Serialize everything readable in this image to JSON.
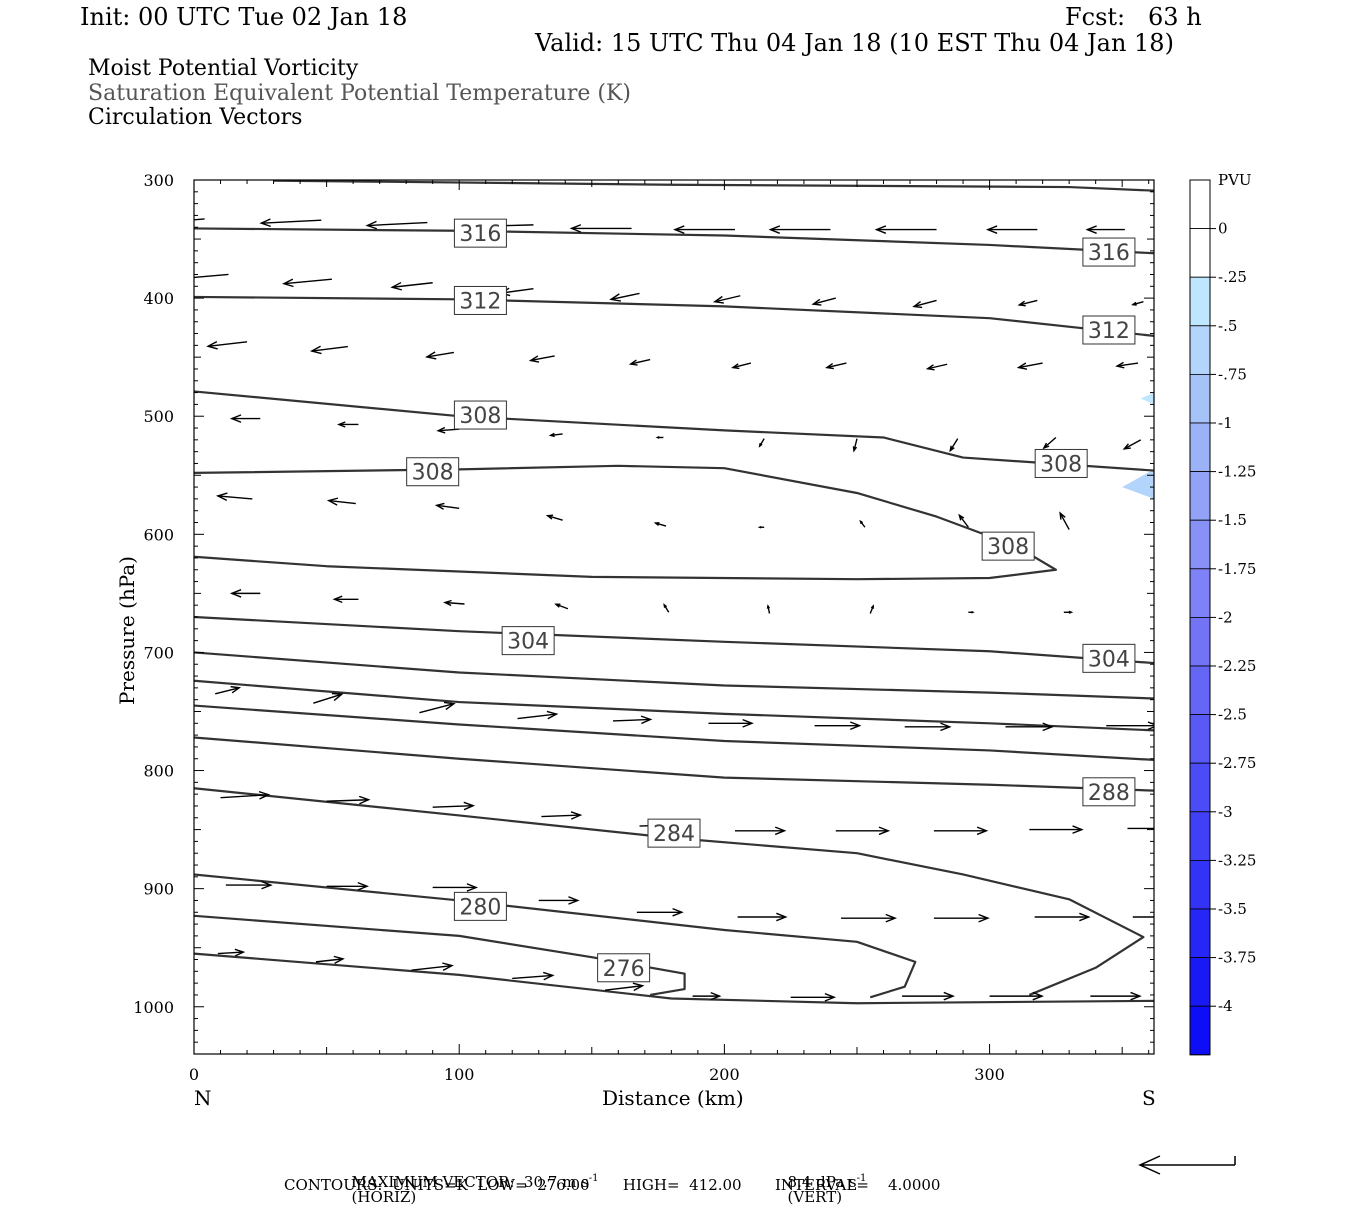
{
  "header": {
    "init": "Init: 00 UTC Tue 02 Jan 18",
    "fcst": "Fcst:   63 h",
    "valid": "Valid: 15 UTC Thu 04 Jan 18 (10 EST Thu 04 Jan 18)"
  },
  "fields": [
    "Moist Potential Vorticity",
    "Saturation Equivalent Potential Temperature (K)",
    "Circulation Vectors"
  ],
  "footer": {
    "line1a": "MAXIMUM VECTOR:  30.7 m s",
    "line1b": "(HORIZ)",
    "line1c": "8.4 dPa s",
    "line1d": "(VERT)",
    "sup": "-1",
    "line2": "CONTOURS:  UNITS=K  LOW=  276.00       HIGH=  412.00       INTERVAL=    4.0000"
  },
  "chart_data": {
    "type": "line",
    "xlabel": "Distance (km)",
    "ylabel": "Pressure (hPa)",
    "xlim": [
      0,
      362
    ],
    "ylim": [
      300,
      1040
    ],
    "x_ticks": [
      0,
      100,
      200,
      300
    ],
    "y_ticks": [
      300,
      400,
      500,
      600,
      700,
      800,
      900,
      1000
    ],
    "x_end_labels": {
      "left": "N",
      "right": "S"
    },
    "colorbar": {
      "title": "PVU",
      "labels": [
        "0",
        "-.25",
        "-.5",
        "-.75",
        "-1",
        "-1.25",
        "-1.5",
        "-1.75",
        "-2",
        "-2.25",
        "-2.5",
        "-2.75",
        "-3",
        "-3.25",
        "-3.5",
        "-3.75",
        "-4"
      ],
      "colors": [
        "#ffffff",
        "#ffffff",
        "#bfe6ff",
        "#b3d5fb",
        "#a6c3f7",
        "#9cb2f6",
        "#92a2f6",
        "#8892f6",
        "#7e82f6",
        "#7373f6",
        "#6666f6",
        "#5959f6",
        "#4c4cf6",
        "#4040f6",
        "#3333f6",
        "#2626f6",
        "#1919f6",
        "#0d0df6"
      ]
    },
    "series": [
      {
        "points": [
          [
            30,
            300.5
          ],
          [
            180,
            304
          ],
          [
            330,
            306
          ],
          [
            362,
            309
          ]
        ]
      },
      {
        "points": [
          [
            0,
            341
          ],
          [
            100,
            343
          ],
          [
            200,
            347
          ],
          [
            300,
            355
          ],
          [
            362,
            362
          ]
        ],
        "labels": [
          {
            "text": "316",
            "x": 108,
            "y": 345
          },
          {
            "text": "316",
            "x": 345,
            "y": 361
          }
        ]
      },
      {
        "points": [
          [
            0,
            399
          ],
          [
            100,
            401
          ],
          [
            200,
            407
          ],
          [
            300,
            417
          ],
          [
            362,
            432
          ]
        ],
        "labels": [
          {
            "text": "312",
            "x": 108,
            "y": 402
          },
          {
            "text": "312",
            "x": 345,
            "y": 427
          }
        ]
      },
      {
        "points": [
          [
            0,
            479
          ],
          [
            100,
            500
          ],
          [
            200,
            512
          ],
          [
            260,
            518
          ],
          [
            290,
            535
          ],
          [
            362,
            546
          ]
        ],
        "labels": [
          {
            "text": "308",
            "x": 108,
            "y": 499
          },
          {
            "text": "308",
            "x": 327,
            "y": 540
          }
        ]
      },
      {
        "points": [
          [
            0,
            548
          ],
          [
            100,
            545
          ],
          [
            160,
            542
          ],
          [
            200,
            544
          ],
          [
            250,
            565
          ],
          [
            280,
            585
          ],
          [
            310,
            610
          ],
          [
            325,
            630
          ],
          [
            300,
            637
          ],
          [
            250,
            638
          ],
          [
            150,
            636
          ],
          [
            50,
            627
          ],
          [
            0,
            619
          ]
        ],
        "labels": [
          {
            "text": "308",
            "x": 90,
            "y": 547
          },
          {
            "text": "308",
            "x": 307,
            "y": 610
          }
        ]
      },
      {
        "points": [
          [
            0,
            670
          ],
          [
            100,
            682
          ],
          [
            200,
            691
          ],
          [
            300,
            699
          ],
          [
            362,
            709
          ]
        ],
        "labels": [
          {
            "text": "304",
            "x": 126,
            "y": 690
          },
          {
            "text": "304",
            "x": 345,
            "y": 705
          }
        ]
      },
      {
        "points": [
          [
            0,
            700
          ],
          [
            100,
            717
          ],
          [
            200,
            728
          ],
          [
            300,
            734
          ],
          [
            362,
            739
          ]
        ]
      },
      {
        "points": [
          [
            0,
            724
          ],
          [
            100,
            742
          ],
          [
            200,
            752
          ],
          [
            300,
            760
          ],
          [
            362,
            766
          ]
        ]
      },
      {
        "points": [
          [
            0,
            745
          ],
          [
            100,
            761
          ],
          [
            200,
            775
          ],
          [
            300,
            783
          ],
          [
            362,
            791
          ]
        ]
      },
      {
        "points": [
          [
            0,
            772
          ],
          [
            100,
            790
          ],
          [
            200,
            806
          ],
          [
            300,
            812
          ],
          [
            362,
            817
          ]
        ],
        "labels": [
          {
            "text": "288",
            "x": 345,
            "y": 818
          }
        ]
      },
      {
        "points": [
          [
            0,
            815
          ],
          [
            100,
            838
          ],
          [
            180,
            857
          ],
          [
            250,
            870
          ],
          [
            290,
            888
          ],
          [
            330,
            909
          ],
          [
            358,
            941
          ],
          [
            340,
            967
          ],
          [
            315,
            990
          ]
        ],
        "labels": [
          {
            "text": "284",
            "x": 181,
            "y": 853
          }
        ]
      },
      {
        "points": [
          [
            0,
            888
          ],
          [
            100,
            910
          ],
          [
            200,
            935
          ],
          [
            250,
            945
          ],
          [
            272,
            962
          ],
          [
            268,
            983
          ],
          [
            255,
            992
          ]
        ],
        "labels": [
          {
            "text": "280",
            "x": 108,
            "y": 915
          }
        ]
      },
      {
        "points": [
          [
            0,
            923
          ],
          [
            100,
            940
          ],
          [
            150,
            958
          ],
          [
            185,
            972
          ],
          [
            185,
            985
          ],
          [
            172,
            990
          ]
        ],
        "labels": [
          {
            "text": "276",
            "x": 162,
            "y": 967
          }
        ]
      },
      {
        "points": [
          [
            0,
            955
          ],
          [
            100,
            973
          ],
          [
            180,
            993
          ],
          [
            250,
            997
          ],
          [
            362,
            995
          ]
        ]
      }
    ],
    "pv_shading": [
      {
        "value": "-.5",
        "points": [
          [
            362,
            545
          ],
          [
            350,
            560
          ],
          [
            362,
            570
          ]
        ]
      },
      {
        "value": "-.25",
        "points": [
          [
            362,
            480
          ],
          [
            357,
            485
          ],
          [
            362,
            490
          ]
        ]
      }
    ],
    "vectors": [
      [
        4,
        333,
        4,
        -0.3
      ],
      [
        48,
        334,
        4,
        -0.2
      ],
      [
        88,
        336,
        4,
        -0.2
      ],
      [
        128,
        338,
        4,
        -0.1
      ],
      [
        165,
        341,
        4,
        0
      ],
      [
        204,
        342,
        4,
        0
      ],
      [
        240,
        342,
        4,
        0
      ],
      [
        280,
        342,
        4,
        0
      ],
      [
        318,
        342,
        3.3,
        0
      ],
      [
        351,
        342,
        2.5,
        0
      ],
      [
        13,
        380,
        3.5,
        -0.3
      ],
      [
        52,
        384,
        3.2,
        -0.3
      ],
      [
        90,
        387,
        2.7,
        -0.3
      ],
      [
        128,
        392,
        2.2,
        -0.3
      ],
      [
        168,
        396,
        1.9,
        -0.4
      ],
      [
        206,
        398,
        1.7,
        -0.4
      ],
      [
        242,
        400,
        1.5,
        -0.4
      ],
      [
        280,
        402,
        1.5,
        -0.4
      ],
      [
        318,
        402,
        1.2,
        -0.3
      ],
      [
        358,
        403,
        0.7,
        -0.2
      ],
      [
        20,
        437,
        2.6,
        -0.3
      ],
      [
        58,
        441,
        2.4,
        -0.3
      ],
      [
        98,
        446,
        1.8,
        -0.3
      ],
      [
        136,
        449,
        1.6,
        -0.3
      ],
      [
        172,
        452,
        1.3,
        -0.3
      ],
      [
        210,
        455,
        1.2,
        -0.3
      ],
      [
        246,
        455,
        1.3,
        -0.3
      ],
      [
        284,
        456,
        1.3,
        -0.3
      ],
      [
        320,
        455,
        1.6,
        -0.3
      ],
      [
        356,
        455,
        1.4,
        -0.2
      ],
      [
        25,
        502,
        1.9,
        0
      ],
      [
        62,
        507,
        1.3,
        0
      ],
      [
        100,
        511,
        1.4,
        -0.1
      ],
      [
        139,
        515,
        0.8,
        -0.1
      ],
      [
        177,
        518,
        0.4,
        0
      ],
      [
        215,
        519,
        0.3,
        -0.5
      ],
      [
        250,
        519,
        0.2,
        -0.8
      ],
      [
        288,
        519,
        0.5,
        -0.8
      ],
      [
        325,
        518,
        0.8,
        -0.7
      ],
      [
        357,
        520,
        1.1,
        -0.6
      ],
      [
        22,
        570,
        2.3,
        0.2
      ],
      [
        61,
        574,
        1.8,
        0.2
      ],
      [
        100,
        578,
        1.5,
        0.2
      ],
      [
        139,
        588,
        1.0,
        0.3
      ],
      [
        178,
        593,
        0.7,
        0.2
      ],
      [
        215,
        594,
        0.3,
        0
      ],
      [
        253,
        594,
        0.3,
        0.4
      ],
      [
        292,
        594,
        0.6,
        0.8
      ],
      [
        330,
        596,
        0.6,
        1.1
      ],
      [
        25,
        650,
        1.9,
        0
      ],
      [
        62,
        655,
        1.6,
        0
      ],
      [
        102,
        659,
        1.3,
        0.1
      ],
      [
        141,
        663,
        0.8,
        0.3
      ],
      [
        179,
        666,
        0.3,
        0.5
      ],
      [
        217,
        667,
        0.1,
        0.5
      ],
      [
        255,
        667,
        -0.2,
        0.5
      ],
      [
        292,
        666,
        -0.3,
        0
      ],
      [
        328,
        666,
        -0.5,
        0
      ],
      [
        8,
        735,
        -1.6,
        0.4
      ],
      [
        45,
        743,
        -1.9,
        0.6
      ],
      [
        85,
        751,
        -2.3,
        0.6
      ],
      [
        122,
        756,
        -2.6,
        0.3
      ],
      [
        158,
        758,
        -2.5,
        0.1
      ],
      [
        194,
        760,
        -2.9,
        0
      ],
      [
        234,
        762,
        -3.0,
        0
      ],
      [
        268,
        763,
        -3.0,
        0
      ],
      [
        306,
        763,
        -3.1,
        0
      ],
      [
        344,
        762,
        -3.4,
        0
      ],
      [
        10,
        823,
        -3.2,
        0.2
      ],
      [
        50,
        826,
        -2.8,
        0.1
      ],
      [
        90,
        831,
        -2.7,
        0.1
      ],
      [
        131,
        839,
        -2.6,
        0.1
      ],
      [
        168,
        847,
        -2.7,
        0.1
      ],
      [
        204,
        851,
        -3.3,
        0
      ],
      [
        242,
        851,
        -3.5,
        0
      ],
      [
        279,
        851,
        -3.5,
        0
      ],
      [
        315,
        850,
        -3.5,
        0
      ],
      [
        352,
        849,
        -3.5,
        0
      ],
      [
        12,
        897,
        -3.0,
        0
      ],
      [
        50,
        898,
        -2.7,
        0
      ],
      [
        90,
        899,
        -2.9,
        0
      ],
      [
        130,
        910,
        -2.6,
        0
      ],
      [
        167,
        920,
        -3.0,
        0
      ],
      [
        205,
        924,
        -3.2,
        0
      ],
      [
        244,
        925,
        -3.6,
        0
      ],
      [
        279,
        925,
        -3.6,
        0
      ],
      [
        317,
        924,
        -3.6,
        0
      ],
      [
        354,
        924,
        -3.5,
        0
      ],
      [
        9,
        955,
        -1.7,
        0.1
      ],
      [
        46,
        962,
        -1.8,
        0.2
      ],
      [
        82,
        969,
        -2.7,
        0.3
      ],
      [
        120,
        976,
        -2.7,
        0.2
      ],
      [
        155,
        986,
        -2.5,
        0.3
      ],
      [
        188,
        991,
        -1.8,
        0
      ],
      [
        225,
        992,
        -2.9,
        0
      ],
      [
        267,
        991,
        -3.4,
        0
      ],
      [
        300,
        991,
        -3.5,
        0
      ],
      [
        338,
        991,
        -3.3,
        0
      ]
    ]
  }
}
